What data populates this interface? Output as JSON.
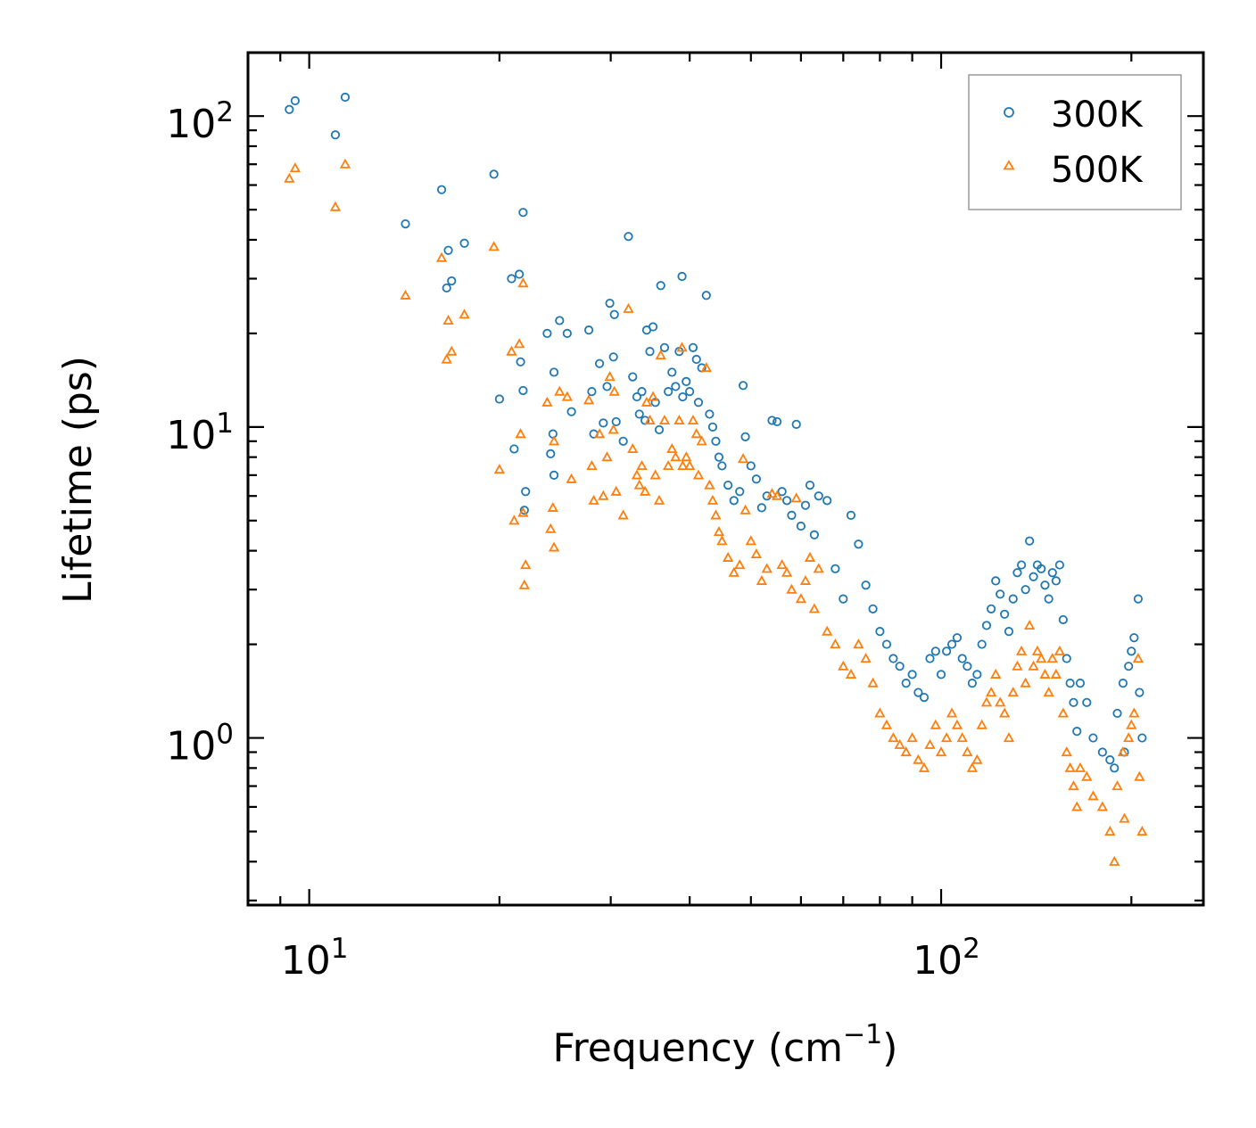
{
  "chart_data": {
    "type": "scatter",
    "title": "",
    "xlabel": "Frequency (cm",
    "xlabel_sup": "−1",
    "xlabel_suffix": ")",
    "ylabel": "Lifetime (ps)",
    "xscale": "log",
    "yscale": "log",
    "xlim": [
      8.0,
      260
    ],
    "ylim": [
      0.29,
      160
    ],
    "x_tick_labels": [
      {
        "base": "10",
        "exp": "1",
        "value": 10
      },
      {
        "base": "10",
        "exp": "2",
        "value": 100
      }
    ],
    "y_tick_labels": [
      {
        "base": "10",
        "exp": "0",
        "value": 1
      },
      {
        "base": "10",
        "exp": "1",
        "value": 10
      },
      {
        "base": "10",
        "exp": "2",
        "value": 100
      }
    ],
    "legend": {
      "placement": "top-right",
      "entries": [
        "300K",
        "500K"
      ]
    },
    "series": [
      {
        "name": "300K",
        "marker": "circle",
        "color": "#1f77b4",
        "points": [
          [
            9.3,
            105
          ],
          [
            9.5,
            112
          ],
          [
            11.0,
            87
          ],
          [
            11.4,
            115
          ],
          [
            14.2,
            45
          ],
          [
            16.2,
            58
          ],
          [
            16.6,
            37
          ],
          [
            16.5,
            28
          ],
          [
            16.8,
            29.5
          ],
          [
            17.6,
            39
          ],
          [
            19.6,
            65
          ],
          [
            20.0,
            12.3
          ],
          [
            20.9,
            30
          ],
          [
            21.5,
            31
          ],
          [
            21.8,
            49
          ],
          [
            21.6,
            16.2
          ],
          [
            21.1,
            8.5
          ],
          [
            21.8,
            13.1
          ],
          [
            22.0,
            6.2
          ],
          [
            21.9,
            5.4
          ],
          [
            23.8,
            20
          ],
          [
            24.1,
            8.2
          ],
          [
            24.3,
            9.5
          ],
          [
            24.4,
            15
          ],
          [
            24.4,
            7
          ],
          [
            24.9,
            22
          ],
          [
            25.6,
            20
          ],
          [
            26.0,
            11.2
          ],
          [
            27.7,
            20.5
          ],
          [
            28.0,
            13
          ],
          [
            28.2,
            9.5
          ],
          [
            28.8,
            16
          ],
          [
            29.2,
            10.3
          ],
          [
            29.6,
            13.5
          ],
          [
            29.9,
            25
          ],
          [
            30.4,
            23
          ],
          [
            30.3,
            16.8
          ],
          [
            30.6,
            10.4
          ],
          [
            31.4,
            9
          ],
          [
            32.0,
            41
          ],
          [
            32.5,
            14.5
          ],
          [
            33.0,
            12.5
          ],
          [
            33.3,
            11
          ],
          [
            33.6,
            13
          ],
          [
            34.0,
            10.5
          ],
          [
            34.2,
            20.5
          ],
          [
            34.6,
            17.5
          ],
          [
            35.0,
            21
          ],
          [
            35.3,
            12
          ],
          [
            35.8,
            9.8
          ],
          [
            36.0,
            28.5
          ],
          [
            36.5,
            18
          ],
          [
            37.0,
            13
          ],
          [
            37.5,
            15
          ],
          [
            38.0,
            13.5
          ],
          [
            38.5,
            17.5
          ],
          [
            38.9,
            30.5
          ],
          [
            39.0,
            12.5
          ],
          [
            39.5,
            14
          ],
          [
            40.0,
            13
          ],
          [
            40.5,
            18
          ],
          [
            41.0,
            16.5
          ],
          [
            41.3,
            12
          ],
          [
            41.8,
            15.5
          ],
          [
            42.5,
            26.5
          ],
          [
            43.0,
            11
          ],
          [
            43.5,
            10
          ],
          [
            44.0,
            9
          ],
          [
            44.5,
            8
          ],
          [
            45.0,
            7.5
          ],
          [
            46.0,
            6.5
          ],
          [
            47.0,
            5.8
          ],
          [
            48.0,
            6.2
          ],
          [
            48.6,
            13.6
          ],
          [
            49.0,
            9.3
          ],
          [
            50.0,
            7.5
          ],
          [
            51.0,
            6.8
          ],
          [
            52.0,
            5.5
          ],
          [
            53.0,
            6.0
          ],
          [
            54.0,
            10.5
          ],
          [
            55.0,
            10.4
          ],
          [
            56.0,
            6.2
          ],
          [
            57.0,
            5.8
          ],
          [
            58.0,
            5.2
          ],
          [
            59.0,
            10.2
          ],
          [
            60.0,
            4.8
          ],
          [
            61.0,
            5.6
          ],
          [
            62.0,
            6.5
          ],
          [
            63.0,
            4.5
          ],
          [
            64.0,
            6.0
          ],
          [
            66.0,
            5.8
          ],
          [
            68.0,
            3.5
          ],
          [
            70.0,
            2.8
          ],
          [
            72.0,
            5.2
          ],
          [
            74.0,
            4.2
          ],
          [
            76.0,
            3.1
          ],
          [
            78.0,
            2.6
          ],
          [
            80.0,
            2.2
          ],
          [
            82.0,
            2.0
          ],
          [
            84.0,
            1.8
          ],
          [
            86.0,
            1.7
          ],
          [
            88.0,
            1.5
          ],
          [
            90.0,
            1.6
          ],
          [
            92.0,
            1.4
          ],
          [
            94.0,
            1.35
          ],
          [
            96.0,
            1.8
          ],
          [
            98.0,
            1.9
          ],
          [
            100.0,
            1.6
          ],
          [
            102.0,
            1.9
          ],
          [
            104.0,
            2.0
          ],
          [
            106.0,
            2.1
          ],
          [
            108.0,
            1.8
          ],
          [
            110.0,
            1.7
          ],
          [
            112.0,
            1.5
          ],
          [
            114.0,
            1.6
          ],
          [
            116.0,
            2.0
          ],
          [
            118.0,
            2.3
          ],
          [
            120.0,
            2.6
          ],
          [
            122.0,
            3.2
          ],
          [
            124.0,
            2.9
          ],
          [
            126.0,
            2.5
          ],
          [
            128.0,
            2.2
          ],
          [
            130.0,
            2.8
          ],
          [
            132.0,
            3.4
          ],
          [
            134.0,
            3.6
          ],
          [
            136.0,
            3.0
          ],
          [
            138.0,
            4.3
          ],
          [
            140.0,
            3.3
          ],
          [
            142.0,
            3.6
          ],
          [
            144.0,
            3.5
          ],
          [
            146.0,
            3.1
          ],
          [
            148.0,
            2.8
          ],
          [
            150.0,
            3.4
          ],
          [
            152.0,
            3.2
          ],
          [
            154.0,
            3.6
          ],
          [
            156.0,
            2.4
          ],
          [
            158.0,
            1.8
          ],
          [
            160.0,
            1.5
          ],
          [
            162.0,
            1.3
          ],
          [
            164.0,
            1.05
          ],
          [
            166.0,
            1.5
          ],
          [
            170.0,
            1.3
          ],
          [
            174.0,
            1.0
          ],
          [
            180.0,
            0.9
          ],
          [
            185.0,
            0.85
          ],
          [
            188.0,
            0.8
          ],
          [
            190.0,
            1.2
          ],
          [
            194.0,
            1.5
          ],
          [
            198.0,
            1.7
          ],
          [
            202.0,
            2.1
          ],
          [
            205.0,
            2.8
          ],
          [
            206.0,
            1.4
          ],
          [
            208.0,
            1.0
          ],
          [
            195.0,
            0.9
          ],
          [
            200.0,
            1.9
          ]
        ]
      },
      {
        "name": "500K",
        "marker": "triangle",
        "color": "#ff7f0e",
        "points": [
          [
            9.3,
            63
          ],
          [
            9.5,
            68
          ],
          [
            11.0,
            51
          ],
          [
            11.4,
            70
          ],
          [
            14.2,
            26.5
          ],
          [
            16.2,
            35
          ],
          [
            16.6,
            22
          ],
          [
            16.5,
            16.5
          ],
          [
            16.8,
            17.5
          ],
          [
            17.6,
            23
          ],
          [
            19.6,
            38
          ],
          [
            20.0,
            7.3
          ],
          [
            20.9,
            17.5
          ],
          [
            21.5,
            18.5
          ],
          [
            21.8,
            29
          ],
          [
            21.6,
            9.5
          ],
          [
            21.1,
            5
          ],
          [
            21.8,
            5.3
          ],
          [
            22.0,
            3.6
          ],
          [
            21.9,
            3.1
          ],
          [
            23.8,
            12
          ],
          [
            24.1,
            4.7
          ],
          [
            24.3,
            5.5
          ],
          [
            24.4,
            9
          ],
          [
            24.4,
            4.1
          ],
          [
            24.9,
            13
          ],
          [
            25.6,
            12.5
          ],
          [
            26.0,
            6.8
          ],
          [
            27.7,
            12.2
          ],
          [
            28.0,
            7.5
          ],
          [
            28.2,
            5.8
          ],
          [
            28.8,
            9.5
          ],
          [
            29.2,
            6.0
          ],
          [
            29.6,
            8
          ],
          [
            29.9,
            14.5
          ],
          [
            30.4,
            13
          ],
          [
            30.3,
            9.8
          ],
          [
            30.6,
            6.2
          ],
          [
            31.4,
            5.2
          ],
          [
            32.0,
            24
          ],
          [
            32.5,
            8.5
          ],
          [
            33.0,
            7
          ],
          [
            33.3,
            6.5
          ],
          [
            33.6,
            7.5
          ],
          [
            34.0,
            6.2
          ],
          [
            34.2,
            12
          ],
          [
            34.6,
            10.5
          ],
          [
            35.0,
            12.5
          ],
          [
            35.3,
            7
          ],
          [
            35.8,
            5.8
          ],
          [
            36.0,
            17
          ],
          [
            36.5,
            10.5
          ],
          [
            37.0,
            7.5
          ],
          [
            37.5,
            8.5
          ],
          [
            38.0,
            8
          ],
          [
            38.5,
            10.5
          ],
          [
            38.9,
            18
          ],
          [
            39.0,
            7.5
          ],
          [
            39.5,
            8
          ],
          [
            40.0,
            7.5
          ],
          [
            40.5,
            10.5
          ],
          [
            41.0,
            9.5
          ],
          [
            41.3,
            7
          ],
          [
            41.8,
            9
          ],
          [
            42.5,
            15.5
          ],
          [
            43.0,
            6.5
          ],
          [
            43.5,
            5.8
          ],
          [
            44.0,
            5.2
          ],
          [
            44.5,
            4.6
          ],
          [
            45.0,
            4.3
          ],
          [
            46.0,
            3.8
          ],
          [
            47.0,
            3.4
          ],
          [
            48.0,
            3.6
          ],
          [
            48.6,
            7.9
          ],
          [
            49.0,
            5.4
          ],
          [
            50.0,
            4.3
          ],
          [
            51.0,
            3.9
          ],
          [
            52.0,
            3.2
          ],
          [
            53.0,
            3.5
          ],
          [
            54.0,
            6.1
          ],
          [
            55.0,
            6.0
          ],
          [
            56.0,
            3.6
          ],
          [
            57.0,
            3.4
          ],
          [
            58.0,
            3.0
          ],
          [
            59.0,
            5.9
          ],
          [
            60.0,
            2.8
          ],
          [
            61.0,
            3.2
          ],
          [
            62.0,
            3.8
          ],
          [
            63.0,
            2.6
          ],
          [
            64.0,
            3.5
          ],
          [
            66.0,
            2.2
          ],
          [
            68.0,
            2.0
          ],
          [
            70.0,
            1.7
          ],
          [
            72.0,
            1.6
          ],
          [
            74.0,
            2.0
          ],
          [
            76.0,
            1.8
          ],
          [
            78.0,
            1.5
          ],
          [
            80.0,
            1.2
          ],
          [
            82.0,
            1.1
          ],
          [
            84.0,
            1.0
          ],
          [
            86.0,
            0.95
          ],
          [
            88.0,
            0.9
          ],
          [
            90.0,
            1.0
          ],
          [
            92.0,
            0.85
          ],
          [
            94.0,
            0.8
          ],
          [
            96.0,
            0.95
          ],
          [
            98.0,
            1.1
          ],
          [
            100.0,
            0.9
          ],
          [
            102.0,
            1.0
          ],
          [
            104.0,
            1.2
          ],
          [
            106.0,
            1.1
          ],
          [
            108.0,
            1.0
          ],
          [
            110.0,
            0.9
          ],
          [
            112.0,
            0.8
          ],
          [
            114.0,
            0.85
          ],
          [
            116.0,
            1.1
          ],
          [
            118.0,
            1.3
          ],
          [
            120.0,
            1.4
          ],
          [
            122.0,
            1.6
          ],
          [
            124.0,
            1.3
          ],
          [
            126.0,
            1.2
          ],
          [
            128.0,
            1.0
          ],
          [
            130.0,
            1.4
          ],
          [
            132.0,
            1.7
          ],
          [
            134.0,
            1.9
          ],
          [
            136.0,
            1.5
          ],
          [
            138.0,
            2.3
          ],
          [
            140.0,
            1.7
          ],
          [
            142.0,
            1.9
          ],
          [
            144.0,
            1.8
          ],
          [
            146.0,
            1.6
          ],
          [
            148.0,
            1.4
          ],
          [
            150.0,
            1.8
          ],
          [
            152.0,
            1.6
          ],
          [
            154.0,
            1.9
          ],
          [
            156.0,
            1.2
          ],
          [
            158.0,
            0.9
          ],
          [
            160.0,
            0.8
          ],
          [
            162.0,
            0.7
          ],
          [
            164.0,
            0.6
          ],
          [
            166.0,
            0.8
          ],
          [
            170.0,
            0.75
          ],
          [
            174.0,
            0.65
          ],
          [
            180.0,
            0.6
          ],
          [
            185.0,
            0.5
          ],
          [
            188.0,
            0.4
          ],
          [
            190.0,
            0.7
          ],
          [
            194.0,
            0.9
          ],
          [
            198.0,
            1.0
          ],
          [
            202.0,
            1.2
          ],
          [
            205.0,
            1.8
          ],
          [
            206.0,
            0.75
          ],
          [
            208.0,
            0.5
          ],
          [
            195.0,
            0.55
          ],
          [
            200.0,
            1.1
          ]
        ]
      }
    ]
  }
}
